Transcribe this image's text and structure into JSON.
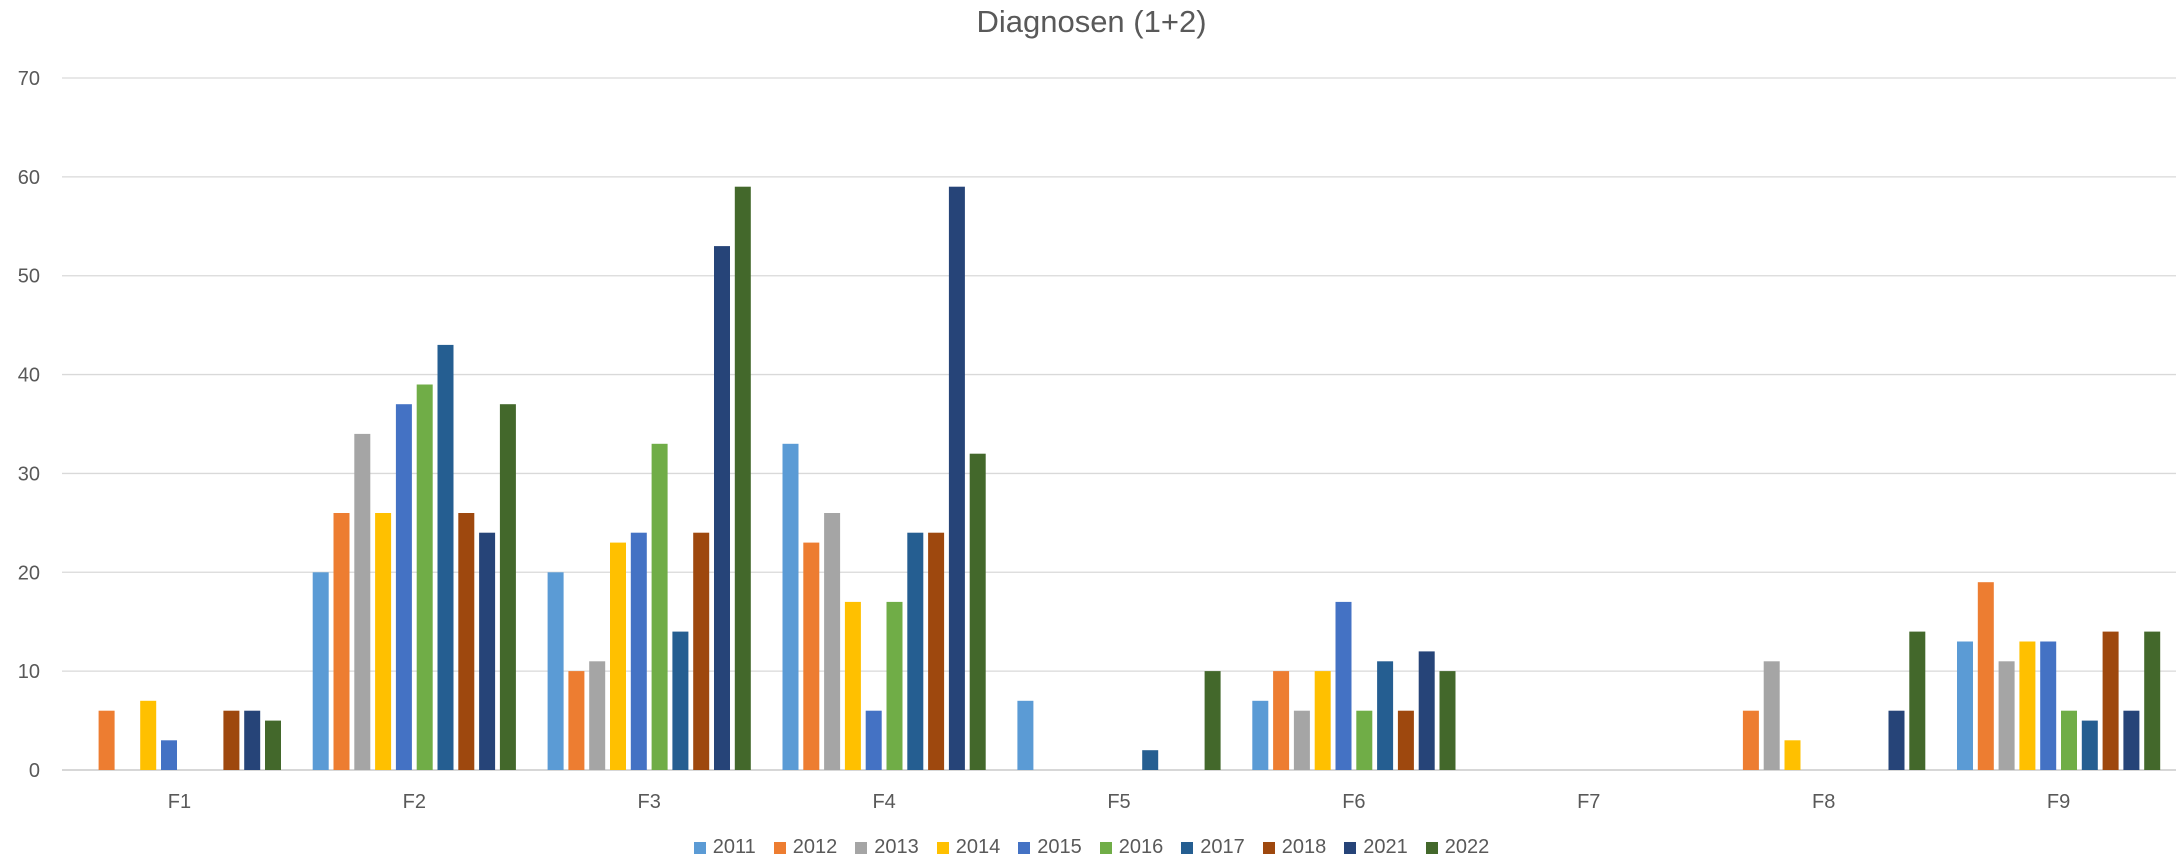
{
  "chart_data": {
    "type": "bar",
    "title": "Diagnosen (1+2)",
    "xlabel": "",
    "ylabel": "",
    "ylim": [
      0,
      70
    ],
    "yticks": [
      0,
      10,
      20,
      30,
      40,
      50,
      60,
      70
    ],
    "grid": true,
    "legend_position": "bottom",
    "categories": [
      "F1",
      "F2",
      "F3",
      "F4",
      "F5",
      "F6",
      "F7",
      "F8",
      "F9"
    ],
    "series": [
      {
        "name": "2011",
        "color": "#5B9BD5",
        "values": [
          0,
          20,
          20,
          33,
          7,
          7,
          0,
          0,
          13
        ]
      },
      {
        "name": "2012",
        "color": "#ED7D31",
        "values": [
          6,
          26,
          10,
          23,
          0,
          10,
          0,
          6,
          19
        ]
      },
      {
        "name": "2013",
        "color": "#A5A5A5",
        "values": [
          0,
          34,
          11,
          26,
          0,
          6,
          0,
          11,
          11
        ]
      },
      {
        "name": "2014",
        "color": "#FFC000",
        "values": [
          7,
          26,
          23,
          17,
          0,
          10,
          0,
          3,
          13
        ]
      },
      {
        "name": "2015",
        "color": "#4472C4",
        "values": [
          3,
          37,
          24,
          6,
          0,
          17,
          0,
          0,
          13
        ]
      },
      {
        "name": "2016",
        "color": "#70AD47",
        "values": [
          0,
          39,
          33,
          17,
          0,
          6,
          0,
          0,
          6
        ]
      },
      {
        "name": "2017",
        "color": "#255E91",
        "values": [
          0,
          43,
          14,
          24,
          2,
          11,
          0,
          0,
          5
        ]
      },
      {
        "name": "2018",
        "color": "#9E480E",
        "values": [
          6,
          26,
          24,
          24,
          0,
          6,
          0,
          0,
          14
        ]
      },
      {
        "name": "2021",
        "color": "#264478",
        "values": [
          6,
          24,
          53,
          59,
          0,
          12,
          0,
          6,
          6
        ]
      },
      {
        "name": "2022",
        "color": "#43682B",
        "values": [
          5,
          37,
          59,
          32,
          10,
          10,
          0,
          14,
          14
        ]
      }
    ]
  }
}
